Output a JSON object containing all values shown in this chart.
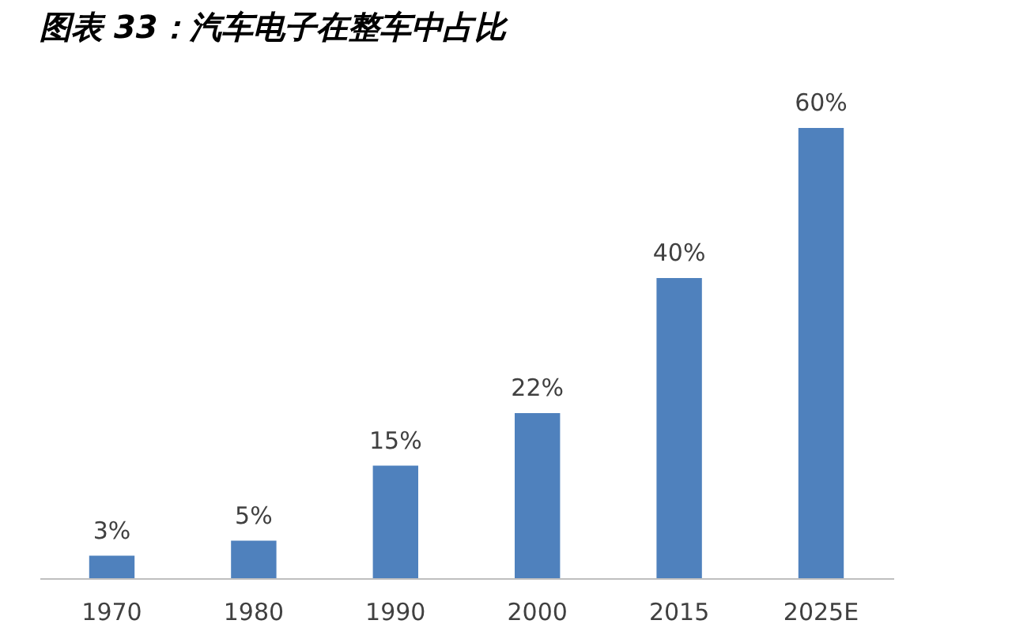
{
  "chart_data": {
    "type": "bar",
    "title": "图表 33：汽车电子在整车中占比",
    "categories": [
      "1970",
      "1980",
      "1990",
      "2000",
      "2015",
      "2025E"
    ],
    "values": [
      3,
      5,
      15,
      22,
      40,
      60
    ],
    "value_labels": [
      "3%",
      "5%",
      "15%",
      "22%",
      "40%",
      "60%"
    ],
    "color": "#4f81bd",
    "grid": false
  }
}
